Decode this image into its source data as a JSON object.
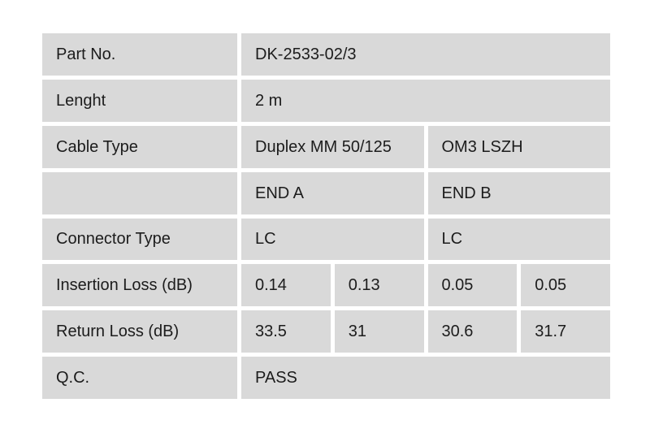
{
  "colors": {
    "page_background": "#ffffff",
    "cell_background": "#d9d9d9",
    "text": "#1c1c1c"
  },
  "table": {
    "rows": [
      {
        "label": "Part No.",
        "values": [
          {
            "text": "DK-2533-02/3",
            "span": 4
          }
        ]
      },
      {
        "label": "Lenght",
        "values": [
          {
            "text": "2 m",
            "span": 4
          }
        ]
      },
      {
        "label": "Cable Type",
        "values": [
          {
            "text": "Duplex MM 50/125",
            "span": 2
          },
          {
            "text": "OM3 LSZH",
            "span": 2
          }
        ]
      },
      {
        "label": "",
        "values": [
          {
            "text": "END A",
            "span": 2
          },
          {
            "text": "END B",
            "span": 2
          }
        ]
      },
      {
        "label": "Connector Type",
        "values": [
          {
            "text": "LC",
            "span": 2
          },
          {
            "text": "LC",
            "span": 2
          }
        ]
      },
      {
        "label": "Insertion Loss (dB)",
        "values": [
          {
            "text": "0.14",
            "span": 1
          },
          {
            "text": "0.13",
            "span": 1
          },
          {
            "text": "0.05",
            "span": 1
          },
          {
            "text": "0.05",
            "span": 1
          }
        ]
      },
      {
        "label": "Return Loss (dB)",
        "values": [
          {
            "text": "33.5",
            "span": 1
          },
          {
            "text": "31",
            "span": 1
          },
          {
            "text": "30.6",
            "span": 1
          },
          {
            "text": "31.7",
            "span": 1
          }
        ]
      },
      {
        "label": "Q.C.",
        "values": [
          {
            "text": "PASS",
            "span": 4
          }
        ]
      }
    ]
  }
}
